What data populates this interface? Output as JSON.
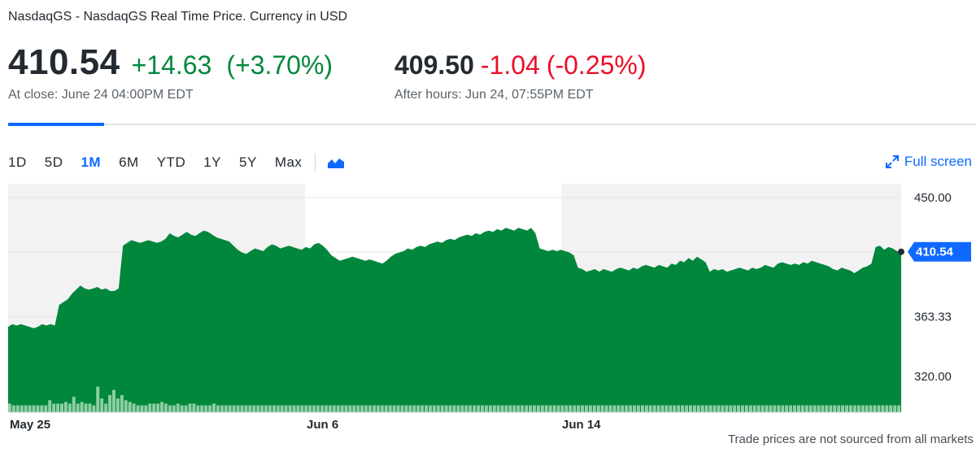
{
  "header": {
    "exchange_line": "NasdaqGS - NasdaqGS Real Time Price. Currency in USD",
    "price": "410.54",
    "change": "+14.63",
    "change_pct": "(+3.70%)",
    "close_label": "At close: June 24 04:00PM EDT",
    "after_hours": {
      "price": "409.50",
      "change": "-1.04",
      "change_pct": "(-0.25%)",
      "label": "After hours: Jun 24, 07:55PM EDT"
    }
  },
  "range_tabs": [
    "1D",
    "5D",
    "1M",
    "6M",
    "YTD",
    "1Y",
    "5Y",
    "Max"
  ],
  "active_range": "1M",
  "chart_type_icon": "mountain-chart-icon",
  "fullscreen_label": "Full screen",
  "footnote": "Trade prices are not sourced from all markets",
  "colors": {
    "up": "#00873c",
    "down": "#eb0f29",
    "accent": "#0f69ff",
    "area_fill": "#00873c",
    "shade": "#f2f2f2"
  },
  "chart_data": {
    "type": "area",
    "y_ticks": [
      "450.00",
      "363.33",
      "320.00"
    ],
    "current_label": "410.54",
    "x_labels": [
      "May 25",
      "Jun 6",
      "Jun 14"
    ],
    "ylim": [
      294,
      460
    ],
    "series": [
      {
        "values": [
          356,
          358,
          357,
          358,
          357,
          356,
          355,
          356,
          358,
          357,
          358,
          357,
          372,
          374,
          376,
          380,
          383,
          386,
          384,
          383,
          384,
          385,
          383,
          384,
          382,
          382,
          384,
          415,
          417,
          419,
          418,
          417,
          418,
          419,
          418,
          417,
          418,
          420,
          424,
          422,
          421,
          423,
          425,
          423,
          422,
          424,
          426,
          425,
          423,
          421,
          420,
          419,
          418,
          415,
          412,
          410,
          409,
          411,
          413,
          412,
          411,
          414,
          416,
          415,
          413,
          414,
          415,
          414,
          413,
          412,
          414,
          413,
          416,
          417,
          415,
          412,
          408,
          406,
          404,
          405,
          406,
          407,
          406,
          405,
          404,
          405,
          404,
          403,
          402,
          404,
          407,
          409,
          410,
          411,
          413,
          412,
          414,
          415,
          414,
          416,
          417,
          418,
          417,
          419,
          420,
          419,
          421,
          422,
          423,
          422,
          424,
          423,
          425,
          426,
          425,
          427,
          426,
          428,
          427,
          426,
          428,
          427,
          426,
          428,
          424,
          413,
          412,
          411,
          412,
          411,
          412,
          411,
          410,
          408,
          399,
          398,
          396,
          397,
          398,
          396,
          398,
          397,
          396,
          398,
          399,
          398,
          397,
          399,
          398,
          400,
          401,
          400,
          399,
          401,
          400,
          399,
          402,
          401,
          404,
          403,
          406,
          404,
          407,
          405,
          403,
          396,
          398,
          397,
          398,
          396,
          397,
          398,
          399,
          398,
          397,
          399,
          398,
          399,
          401,
          400,
          399,
          402,
          403,
          402,
          401,
          402,
          401,
          403,
          402,
          404,
          403,
          402,
          401,
          400,
          398,
          397,
          399,
          398,
          397,
          395,
          397,
          399,
          400,
          402,
          414,
          415,
          412,
          414,
          413,
          411,
          410
        ]
      }
    ],
    "volume": [
      5,
      4,
      4,
      4,
      4,
      4,
      4,
      4,
      4,
      4,
      7,
      5,
      5,
      5,
      6,
      5,
      9,
      5,
      6,
      5,
      5,
      4,
      15,
      8,
      5,
      10,
      13,
      8,
      10,
      7,
      6,
      5,
      4,
      4,
      4,
      5,
      5,
      5,
      6,
      5,
      4,
      4,
      5,
      4,
      4,
      5,
      5,
      4,
      4,
      4,
      4,
      5,
      4,
      4,
      4,
      4,
      4,
      4,
      4,
      4,
      4,
      4,
      4,
      4,
      4,
      4,
      4,
      4,
      4,
      4,
      4,
      4,
      4,
      4,
      4,
      4,
      4,
      4,
      4,
      4,
      4,
      4,
      4,
      4,
      4,
      4,
      4,
      4,
      4,
      4,
      4,
      4,
      4,
      4,
      4,
      4,
      4,
      4,
      4,
      4,
      4,
      4,
      4,
      4,
      4,
      4,
      4,
      4,
      4,
      4,
      4,
      4,
      4,
      4,
      4,
      4,
      4,
      4,
      4,
      4,
      4,
      4,
      4,
      4,
      4,
      4,
      4,
      4,
      4,
      4,
      4,
      4,
      4,
      4,
      4,
      4,
      4,
      4,
      4,
      4,
      4,
      4,
      4,
      4,
      4,
      4,
      4,
      4,
      4,
      4,
      4,
      4,
      4,
      4,
      4,
      4,
      4,
      4,
      4,
      4,
      4,
      4,
      4,
      4,
      4,
      4,
      4,
      4,
      4,
      4,
      4,
      4,
      4,
      4,
      4,
      4,
      4,
      4,
      4,
      4,
      4,
      4,
      4,
      4,
      4,
      4,
      4,
      4,
      4,
      4,
      4,
      4,
      4,
      4,
      4,
      4,
      4,
      4,
      4,
      4,
      4,
      4,
      4,
      4,
      4,
      4,
      4,
      4,
      4,
      4,
      4,
      4,
      4,
      4,
      4,
      4,
      4,
      4,
      4,
      4,
      4,
      4,
      4
    ]
  }
}
